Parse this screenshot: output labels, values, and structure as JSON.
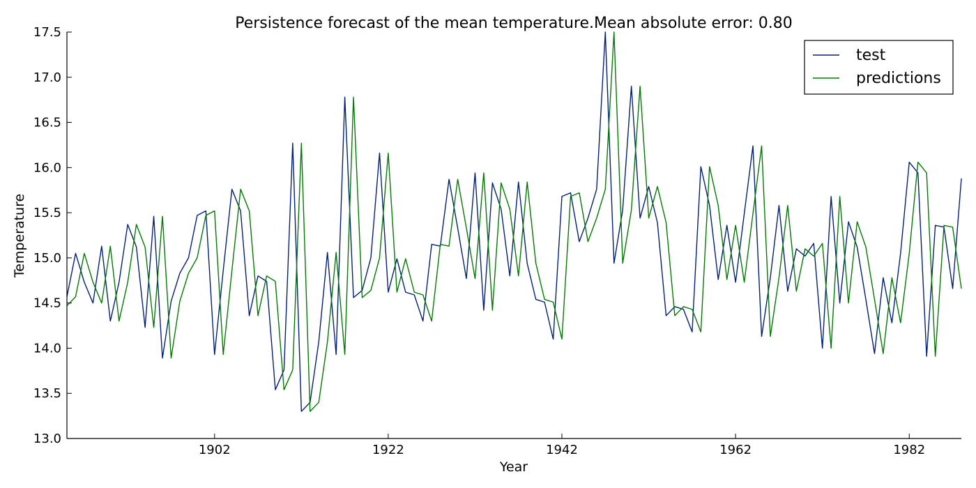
{
  "chart_data": {
    "type": "line",
    "title": "Persistence forecast of the mean temperature.Mean absolute error: 0.80",
    "xlabel": "Year",
    "ylabel": "Temperature",
    "xlim": [
      1885,
      1988
    ],
    "ylim": [
      13.0,
      17.5
    ],
    "xticks": [
      1902,
      1922,
      1942,
      1962,
      1982
    ],
    "yticks": [
      13.0,
      13.5,
      14.0,
      14.5,
      15.0,
      15.5,
      16.0,
      16.5,
      17.0,
      17.5
    ],
    "grid": false,
    "legend_position": "top-right",
    "x": [
      1885,
      1886,
      1887,
      1888,
      1889,
      1890,
      1891,
      1892,
      1893,
      1894,
      1895,
      1896,
      1897,
      1898,
      1899,
      1900,
      1901,
      1902,
      1903,
      1904,
      1905,
      1906,
      1907,
      1908,
      1909,
      1910,
      1911,
      1912,
      1913,
      1914,
      1915,
      1916,
      1917,
      1918,
      1919,
      1920,
      1921,
      1922,
      1923,
      1924,
      1925,
      1926,
      1927,
      1928,
      1929,
      1930,
      1931,
      1932,
      1933,
      1934,
      1935,
      1936,
      1937,
      1938,
      1939,
      1940,
      1941,
      1942,
      1943,
      1944,
      1945,
      1946,
      1947,
      1948,
      1949,
      1950,
      1951,
      1952,
      1953,
      1954,
      1955,
      1956,
      1957,
      1958,
      1959,
      1960,
      1961,
      1962,
      1963,
      1964,
      1965,
      1966,
      1967,
      1968,
      1969,
      1970,
      1971,
      1972,
      1973,
      1974,
      1975,
      1976,
      1977,
      1978,
      1979,
      1980,
      1981,
      1982,
      1983,
      1984,
      1985,
      1986,
      1987,
      1988
    ],
    "series": [
      {
        "name": "test",
        "color": "#001f7a",
        "values": [
          14.57,
          15.05,
          14.73,
          14.5,
          15.13,
          14.3,
          14.73,
          15.37,
          15.12,
          14.23,
          15.46,
          13.89,
          14.52,
          14.83,
          15.0,
          15.47,
          15.52,
          13.93,
          14.86,
          15.76,
          15.52,
          14.36,
          14.8,
          14.74,
          13.54,
          13.76,
          16.27,
          13.3,
          13.4,
          14.07,
          15.06,
          13.93,
          16.78,
          14.56,
          14.64,
          15.0,
          16.16,
          14.62,
          14.99,
          14.62,
          14.59,
          14.3,
          15.15,
          15.13,
          15.87,
          15.33,
          14.77,
          15.94,
          14.42,
          15.83,
          15.54,
          14.8,
          15.84,
          14.94,
          14.54,
          14.51,
          14.1,
          15.68,
          15.72,
          15.18,
          15.44,
          15.76,
          17.5,
          14.94,
          15.53,
          16.9,
          15.44,
          15.79,
          15.39,
          14.36,
          14.46,
          14.43,
          14.18,
          16.01,
          15.58,
          14.76,
          15.36,
          14.73,
          15.49,
          16.24,
          14.13,
          14.78,
          15.58,
          14.63,
          15.1,
          15.02,
          15.16,
          14.0,
          15.68,
          14.5,
          15.4,
          15.12,
          14.54,
          13.94,
          14.78,
          14.28,
          15.05,
          16.06,
          15.94,
          13.91,
          15.36,
          15.34,
          14.66,
          15.88
        ]
      },
      {
        "name": "predictions",
        "color": "#007a00",
        "values": [
          14.47,
          14.57,
          15.05,
          14.73,
          14.5,
          15.13,
          14.3,
          14.73,
          15.37,
          15.12,
          14.23,
          15.46,
          13.89,
          14.52,
          14.83,
          15.0,
          15.47,
          15.52,
          13.93,
          14.86,
          15.76,
          15.52,
          14.36,
          14.8,
          14.74,
          13.54,
          13.76,
          16.27,
          13.3,
          13.4,
          14.07,
          15.06,
          13.93,
          16.78,
          14.56,
          14.64,
          15.0,
          16.16,
          14.62,
          14.99,
          14.62,
          14.59,
          14.3,
          15.15,
          15.13,
          15.87,
          15.33,
          14.77,
          15.94,
          14.42,
          15.83,
          15.54,
          14.8,
          15.84,
          14.94,
          14.54,
          14.51,
          14.1,
          15.68,
          15.72,
          15.18,
          15.44,
          15.76,
          17.5,
          14.94,
          15.53,
          16.9,
          15.44,
          15.79,
          15.39,
          14.36,
          14.46,
          14.43,
          14.18,
          16.01,
          15.58,
          14.76,
          15.36,
          14.73,
          15.49,
          16.24,
          14.13,
          14.78,
          15.58,
          14.63,
          15.1,
          15.02,
          15.16,
          14.0,
          15.68,
          14.5,
          15.4,
          15.12,
          14.54,
          13.94,
          14.78,
          14.28,
          15.05,
          16.06,
          15.94,
          13.91,
          15.36,
          15.34,
          14.66
        ]
      }
    ]
  }
}
